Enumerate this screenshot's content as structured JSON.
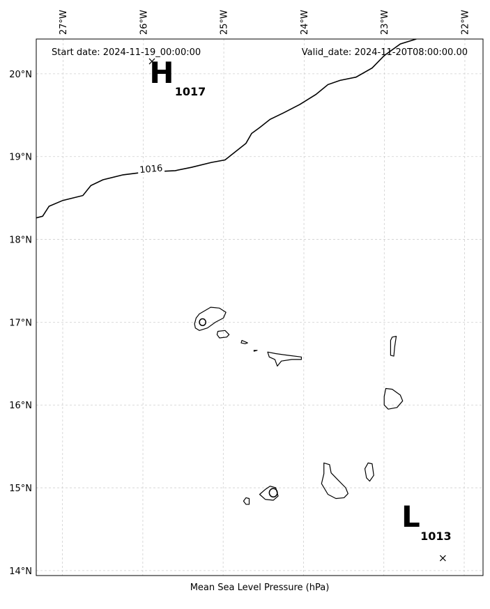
{
  "map": {
    "start_date_text": "Start date: 2024-11-19_00:00:00",
    "valid_date_text": "Valid_date: 2024-11-20T08:00:00.00",
    "caption": "Mean Sea Level Pressure (hPa)",
    "extent": {
      "lon_min": -27.33,
      "lon_max": -21.77,
      "lat_min": 13.94,
      "lat_max": 20.42
    },
    "grid": true,
    "lon_ticks": [
      {
        "value": -27,
        "label": "27°W"
      },
      {
        "value": -26,
        "label": "26°W"
      },
      {
        "value": -25,
        "label": "25°W"
      },
      {
        "value": -24,
        "label": "24°W"
      },
      {
        "value": -23,
        "label": "23°W"
      },
      {
        "value": -22,
        "label": "22°W"
      }
    ],
    "lat_ticks": [
      {
        "value": 20,
        "label": "20°N"
      },
      {
        "value": 19,
        "label": "19°N"
      },
      {
        "value": 18,
        "label": "18°N"
      },
      {
        "value": 17,
        "label": "17°N"
      },
      {
        "value": 16,
        "label": "16°N"
      },
      {
        "value": 15,
        "label": "15°N"
      },
      {
        "value": 14,
        "label": "14°N"
      }
    ],
    "isobars": [
      {
        "value": 1016,
        "label": "1016",
        "points": [
          [
            -27.33,
            18.26
          ],
          [
            -27.25,
            18.28
          ],
          [
            -27.17,
            18.4
          ],
          [
            -27.0,
            18.47
          ],
          [
            -26.75,
            18.53
          ],
          [
            -26.65,
            18.65
          ],
          [
            -26.5,
            18.72
          ],
          [
            -26.25,
            18.78
          ],
          [
            -26.0,
            18.81
          ],
          [
            -25.8,
            18.82
          ],
          [
            -25.6,
            18.83
          ],
          [
            -25.4,
            18.87
          ],
          [
            -25.15,
            18.93
          ],
          [
            -24.98,
            18.96
          ],
          [
            -24.85,
            19.06
          ],
          [
            -24.72,
            19.16
          ],
          [
            -24.65,
            19.28
          ],
          [
            -24.55,
            19.35
          ],
          [
            -24.42,
            19.45
          ],
          [
            -24.25,
            19.53
          ],
          [
            -24.05,
            19.63
          ],
          [
            -23.85,
            19.75
          ],
          [
            -23.7,
            19.87
          ],
          [
            -23.55,
            19.92
          ],
          [
            -23.35,
            19.96
          ],
          [
            -23.15,
            20.07
          ],
          [
            -23.0,
            20.22
          ],
          [
            -22.8,
            20.36
          ],
          [
            -22.6,
            20.42
          ]
        ],
        "label_at": [
          -25.9,
          18.84
        ]
      }
    ],
    "centers": [
      {
        "letter": "H",
        "value": "1017",
        "lon": -25.89,
        "lat": 20.15
      },
      {
        "letter": "L",
        "value": "1013",
        "lon": -22.27,
        "lat": 14.15
      }
    ],
    "islands": [
      {
        "name": "Santo Antao",
        "points": [
          [
            -25.3,
            17.1
          ],
          [
            -25.16,
            17.18
          ],
          [
            -25.05,
            17.17
          ],
          [
            -24.97,
            17.12
          ],
          [
            -25.0,
            17.05
          ],
          [
            -25.1,
            17.0
          ],
          [
            -25.2,
            16.93
          ],
          [
            -25.3,
            16.9
          ],
          [
            -25.35,
            16.93
          ],
          [
            -25.36,
            16.98
          ],
          [
            -25.34,
            17.05
          ]
        ],
        "holes": [
          [
            -25.26,
            17.0,
            0.04
          ]
        ]
      },
      {
        "name": "Sao Vicente",
        "points": [
          [
            -25.07,
            16.89
          ],
          [
            -24.98,
            16.9
          ],
          [
            -24.93,
            16.85
          ],
          [
            -24.96,
            16.82
          ],
          [
            -25.05,
            16.81
          ],
          [
            -25.08,
            16.85
          ]
        ]
      },
      {
        "name": "Santa Luzia",
        "points": [
          [
            -24.77,
            16.78
          ],
          [
            -24.7,
            16.75
          ],
          [
            -24.73,
            16.74
          ],
          [
            -24.78,
            16.75
          ]
        ]
      },
      {
        "name": "Branco",
        "points": [
          [
            -24.62,
            16.66
          ],
          [
            -24.58,
            16.66
          ],
          [
            -24.62,
            16.65
          ]
        ]
      },
      {
        "name": "Sao Nicolau",
        "points": [
          [
            -24.45,
            16.64
          ],
          [
            -24.35,
            16.62
          ],
          [
            -24.2,
            16.6
          ],
          [
            -24.03,
            16.58
          ],
          [
            -24.03,
            16.55
          ],
          [
            -24.15,
            16.55
          ],
          [
            -24.28,
            16.53
          ],
          [
            -24.33,
            16.47
          ],
          [
            -24.36,
            16.55
          ],
          [
            -24.43,
            16.58
          ]
        ]
      },
      {
        "name": "Sal",
        "points": [
          [
            -22.9,
            16.82
          ],
          [
            -22.85,
            16.83
          ],
          [
            -22.87,
            16.7
          ],
          [
            -22.88,
            16.59
          ],
          [
            -22.92,
            16.6
          ],
          [
            -22.92,
            16.78
          ]
        ]
      },
      {
        "name": "Boa Vista",
        "points": [
          [
            -22.98,
            16.2
          ],
          [
            -22.9,
            16.19
          ],
          [
            -22.8,
            16.12
          ],
          [
            -22.77,
            16.05
          ],
          [
            -22.84,
            15.97
          ],
          [
            -22.95,
            15.95
          ],
          [
            -23.0,
            16.0
          ],
          [
            -23.0,
            16.1
          ]
        ]
      },
      {
        "name": "Santiago",
        "points": [
          [
            -23.75,
            15.3
          ],
          [
            -23.68,
            15.28
          ],
          [
            -23.66,
            15.18
          ],
          [
            -23.58,
            15.1
          ],
          [
            -23.48,
            15.0
          ],
          [
            -23.45,
            14.93
          ],
          [
            -23.5,
            14.88
          ],
          [
            -23.6,
            14.87
          ],
          [
            -23.7,
            14.92
          ],
          [
            -23.78,
            15.05
          ],
          [
            -23.75,
            15.17
          ]
        ]
      },
      {
        "name": "Maio",
        "points": [
          [
            -23.2,
            15.3
          ],
          [
            -23.15,
            15.29
          ],
          [
            -23.13,
            15.15
          ],
          [
            -23.18,
            15.08
          ],
          [
            -23.22,
            15.12
          ],
          [
            -23.24,
            15.23
          ]
        ]
      },
      {
        "name": "Fogo",
        "points": [
          [
            -24.42,
            15.02
          ],
          [
            -24.35,
            15.0
          ],
          [
            -24.32,
            14.9
          ],
          [
            -24.38,
            14.85
          ],
          [
            -24.48,
            14.86
          ],
          [
            -24.55,
            14.92
          ],
          [
            -24.48,
            14.98
          ]
        ],
        "holes": [
          [
            -24.38,
            14.94,
            0.05
          ]
        ]
      },
      {
        "name": "Brava",
        "points": [
          [
            -24.72,
            14.88
          ],
          [
            -24.68,
            14.87
          ],
          [
            -24.68,
            14.8
          ],
          [
            -24.72,
            14.8
          ],
          [
            -24.75,
            14.84
          ]
        ]
      }
    ]
  }
}
